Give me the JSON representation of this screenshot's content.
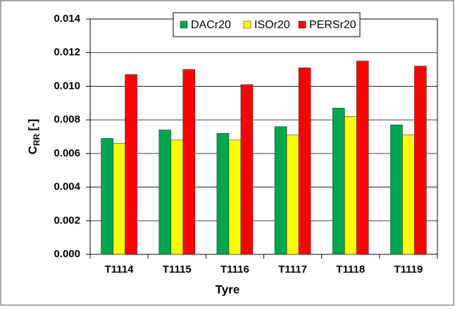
{
  "chart_data": {
    "type": "bar",
    "x_label": "Tyre",
    "y_label": "C",
    "y_label_subscript": "RR",
    "y_label_suffix": "[-]",
    "categories": [
      "T1114",
      "T1115",
      "T1116",
      "T1117",
      "T1118",
      "T1119"
    ],
    "series": [
      {
        "name": "DACr20",
        "color": "#00a54f",
        "values": [
          0.0069,
          0.0074,
          0.0072,
          0.0076,
          0.0087,
          0.0077
        ]
      },
      {
        "name": "ISOr20",
        "color": "#ffff00",
        "values": [
          0.0066,
          0.0068,
          0.0068,
          0.0071,
          0.0082,
          0.0071
        ]
      },
      {
        "name": "PERSr20",
        "color": "#ff0000",
        "values": [
          0.0107,
          0.011,
          0.0101,
          0.0111,
          0.0115,
          0.0112
        ]
      }
    ],
    "ylim": [
      0,
      0.014
    ],
    "yticks": [
      {
        "value": 0,
        "label": "0.000"
      },
      0.002,
      0.004,
      0.006,
      0.008,
      {
        "value": 0.01,
        "label": "0.010"
      },
      0.012,
      0.014
    ],
    "grid": true,
    "legend": "top"
  }
}
